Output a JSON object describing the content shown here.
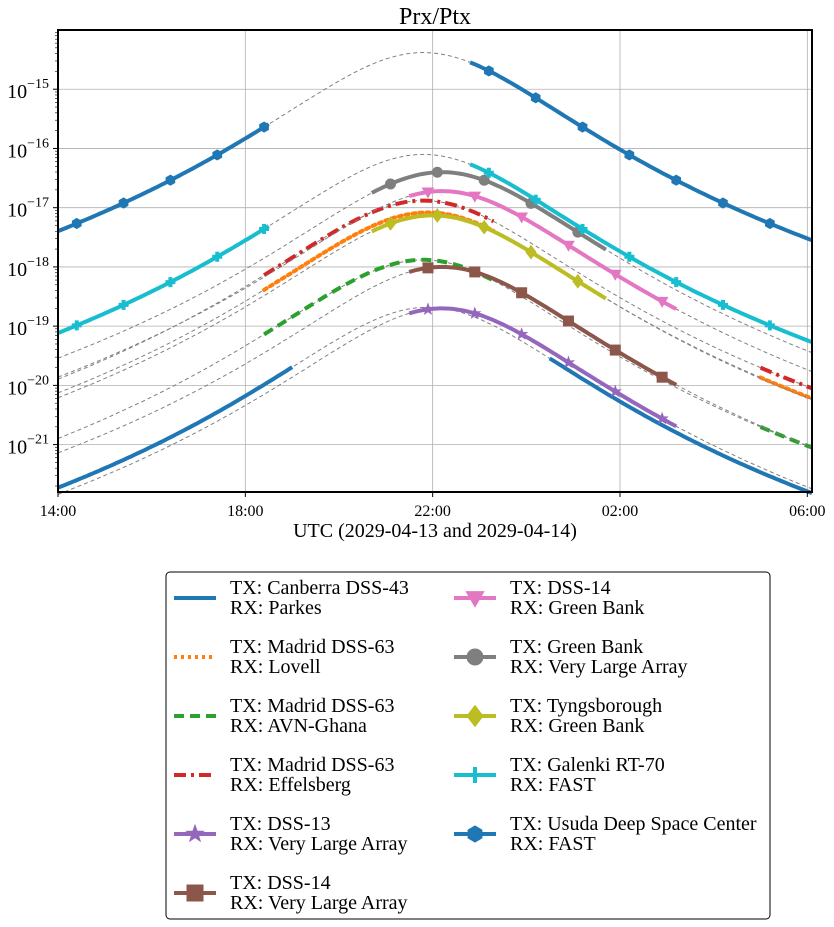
{
  "chart_data": {
    "type": "line",
    "title": "Prx/Ptx",
    "xlabel": "UTC (2029-04-13 and 2029-04-14)",
    "ylabel": "",
    "x_unit": "hours since 2029-04-13 00:00 UTC",
    "xlim": [
      14,
      30.1
    ],
    "ylim_log10": [
      -21.8,
      -14.0
    ],
    "yscale": "log",
    "grid": true,
    "legend_position": "below",
    "x_ticks": [
      {
        "value": 14,
        "label": "14:00"
      },
      {
        "value": 18,
        "label": "18:00"
      },
      {
        "value": 22,
        "label": "22:00"
      },
      {
        "value": 26,
        "label": "02:00"
      },
      {
        "value": 30,
        "label": "06:00"
      }
    ],
    "y_ticks": [
      {
        "value": -15,
        "base": "10",
        "exp": "−15"
      },
      {
        "value": -16,
        "base": "10",
        "exp": "−16"
      },
      {
        "value": -17,
        "base": "10",
        "exp": "−17"
      },
      {
        "value": -18,
        "base": "10",
        "exp": "−18"
      },
      {
        "value": -19,
        "base": "10",
        "exp": "−19"
      },
      {
        "value": -20,
        "base": "10",
        "exp": "−20"
      },
      {
        "value": -21,
        "base": "10",
        "exp": "−21"
      }
    ],
    "series": [
      {
        "tx": "TX: Canberra DSS-43",
        "rx": "RX: Parkes",
        "color": "#1f77b4",
        "style": "solid",
        "marker": "none",
        "peak_log10": -18.68,
        "peak_x": 21.9,
        "visible": [
          [
            14,
            19.0
          ],
          [
            24.5,
            30.1
          ]
        ]
      },
      {
        "tx": "TX: Madrid DSS-63",
        "rx": "RX: Lovell",
        "color": "#ff7f0e",
        "style": "dotted",
        "marker": "none",
        "peak_log10": -17.08,
        "peak_x": 21.9,
        "visible": [
          [
            18.4,
            23.3
          ],
          [
            29.0,
            30.1
          ]
        ]
      },
      {
        "tx": "TX: Madrid DSS-63",
        "rx": "RX: AVN-Ghana",
        "color": "#2ca02c",
        "style": "dashed",
        "marker": "none",
        "peak_log10": -17.88,
        "peak_x": 21.8,
        "visible": [
          [
            18.4,
            23.3
          ],
          [
            29.0,
            30.1
          ]
        ]
      },
      {
        "tx": "TX: Madrid DSS-63",
        "rx": "RX: Effelsberg",
        "color": "#d62728",
        "style": "dashdot",
        "marker": "none",
        "peak_log10": -16.88,
        "peak_x": 21.8,
        "visible": [
          [
            18.4,
            23.3
          ],
          [
            29.0,
            30.1
          ]
        ]
      },
      {
        "tx": "TX: DSS-13",
        "rx": "RX: Very Large Array",
        "color": "#9467bd",
        "style": "solid",
        "marker": "star",
        "peak_log10": -18.7,
        "peak_x": 22.2,
        "visible": [
          [
            21.5,
            27.2
          ]
        ]
      },
      {
        "tx": "TX: DSS-14",
        "rx": "RX: Very Large Array",
        "color": "#8c564b",
        "style": "solid",
        "marker": "square",
        "peak_log10": -18.0,
        "peak_x": 22.2,
        "visible": [
          [
            21.5,
            27.2
          ]
        ]
      },
      {
        "tx": "TX: DSS-14",
        "rx": "RX: Green Bank",
        "color": "#e377c2",
        "style": "solid",
        "marker": "triangle_down",
        "peak_log10": -16.72,
        "peak_x": 22.2,
        "visible": [
          [
            21.5,
            27.2
          ]
        ]
      },
      {
        "tx": "TX: Green Bank",
        "rx": "RX: Very Large Array",
        "color": "#7f7f7f",
        "style": "solid",
        "marker": "circle",
        "peak_log10": -16.4,
        "peak_x": 22.2,
        "visible": [
          [
            20.7,
            25.7
          ]
        ]
      },
      {
        "tx": "TX: Tyngsborough",
        "rx": "RX: Green Bank",
        "color": "#bcbd22",
        "style": "solid",
        "marker": "diamond",
        "peak_log10": -17.13,
        "peak_x": 22.0,
        "visible": [
          [
            20.7,
            25.7
          ]
        ]
      },
      {
        "tx": "TX: Galenki RT-70",
        "rx": "RX: FAST",
        "color": "#17becf",
        "style": "solid",
        "marker": "plus",
        "peak_log10": -16.1,
        "peak_x": 21.8,
        "visible": [
          [
            14,
            18.5
          ],
          [
            22.8,
            30.1
          ]
        ]
      },
      {
        "tx": "TX: Usuda Deep Space Center",
        "rx": "RX: FAST",
        "color": "#1f77b4",
        "style": "solid",
        "marker": "hexagon",
        "peak_log10": -14.38,
        "peak_x": 21.8,
        "visible": [
          [
            14,
            18.5
          ],
          [
            22.8,
            30.1
          ]
        ]
      }
    ]
  }
}
